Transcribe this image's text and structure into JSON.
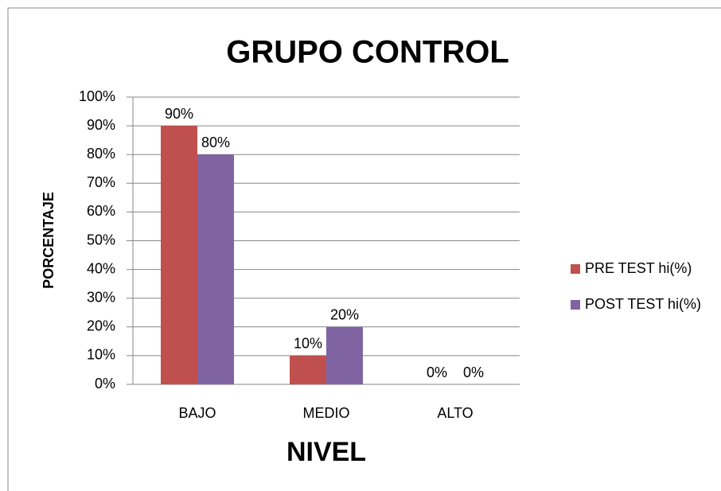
{
  "chart_data": {
    "type": "bar",
    "title": "GRUPO CONTROL",
    "x_label": "NIVEL",
    "y_label": "PORCENTAJE",
    "categories": [
      "BAJO",
      "MEDIO",
      "ALTO"
    ],
    "series": [
      {
        "name": "PRE TEST hi(%)",
        "color": "#c0504d",
        "values": [
          90,
          10,
          0
        ],
        "value_labels": [
          "90%",
          "10%",
          "0%"
        ]
      },
      {
        "name": "POST TEST hi(%)",
        "color": "#8064a2",
        "values": [
          80,
          20,
          0
        ],
        "value_labels": [
          "80%",
          "20%",
          "0%"
        ]
      }
    ],
    "ylim": [
      0,
      100
    ],
    "yticks": [
      {
        "value": 0,
        "label": "0%"
      },
      {
        "value": 10,
        "label": "10%"
      },
      {
        "value": 20,
        "label": "20%"
      },
      {
        "value": 30,
        "label": "30%"
      },
      {
        "value": 40,
        "label": "40%"
      },
      {
        "value": 50,
        "label": "50%"
      },
      {
        "value": 60,
        "label": "60%"
      },
      {
        "value": 70,
        "label": "70%"
      },
      {
        "value": 80,
        "label": "80%"
      },
      {
        "value": 90,
        "label": "90%"
      },
      {
        "value": 100,
        "label": "100%"
      }
    ],
    "grid": true,
    "legend": "right"
  }
}
